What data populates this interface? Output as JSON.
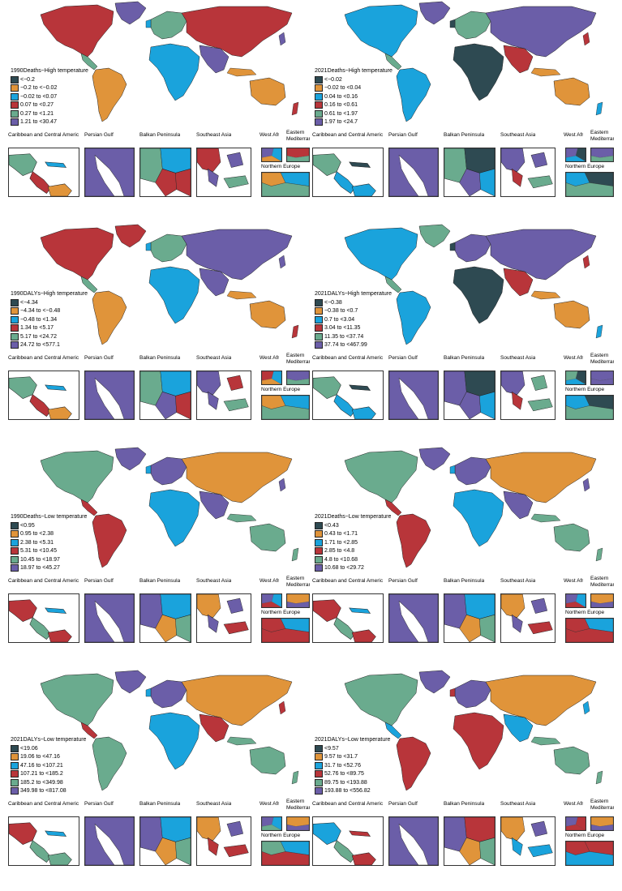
{
  "colors": {
    "c1": "#2e4a52",
    "c2": "#e0943a",
    "c3": "#1aa3dc",
    "c4": "#b8353a",
    "c5": "#6aab8e",
    "c6": "#6b5ea8"
  },
  "inset_labels": {
    "caribbean": "Caribbean and Central Americ",
    "persian": "Persian Gulf",
    "balkan": "Balkan Peninsula",
    "seasia": "Southeast Asia",
    "westafr": "West Afri",
    "eastmed": "Eastern Mediterran",
    "northeu": "Northern Europe"
  },
  "panels": [
    {
      "title": "1990Deaths~High temperature",
      "scheme": [
        "c4",
        "c6",
        "c5",
        "c2",
        "c5",
        "c3",
        "c4",
        "c6",
        "c2"
      ],
      "legend": [
        "<−0.2",
        "−0.2 to <−0.02",
        "−0.02 to <0.07",
        "0.07 to <0.27",
        "0.27 to <1.21",
        "1.21 to <30.47"
      ]
    },
    {
      "title": "2021Deaths~High temperature",
      "scheme": [
        "c3",
        "c6",
        "c5",
        "c3",
        "c5",
        "c1",
        "c6",
        "c4",
        "c2"
      ],
      "legend": [
        "<−0.02",
        "−0.02 to <0.04",
        "0.04 to <0.16",
        "0.16 to <0.61",
        "0.61 to <1.97",
        "1.97 to <24.7"
      ]
    },
    {
      "title": "1990DALYs~High temperature",
      "scheme": [
        "c4",
        "c4",
        "c5",
        "c2",
        "c5",
        "c3",
        "c6",
        "c6",
        "c2"
      ],
      "legend": [
        "<−4.34",
        "−4.34 to <−0.48",
        "−0.48 to <1.34",
        "1.34 to <5.17",
        "5.17 to <24.72",
        "24.72 to <577.1"
      ]
    },
    {
      "title": "2021DALYs~High temperature",
      "scheme": [
        "c3",
        "c5",
        "c5",
        "c3",
        "c6",
        "c1",
        "c6",
        "c4",
        "c2"
      ],
      "legend": [
        "<−0.38",
        "−0.38 to <0.7",
        "0.7 to <3.04",
        "3.04 to <11.35",
        "11.35 to <37.74",
        "37.74 to <467.99"
      ]
    },
    {
      "title": "1990Deaths~Low temperature",
      "scheme": [
        "c5",
        "c6",
        "c4",
        "c4",
        "c6",
        "c3",
        "c2",
        "c6",
        "c5"
      ],
      "legend": [
        "<0.95",
        "0.95 to <2.38",
        "2.38 to <5.31",
        "5.31 to <10.45",
        "10.45 to <18.97",
        "18.97 to <45.27"
      ]
    },
    {
      "title": "2021Deaths~Low temperature",
      "scheme": [
        "c5",
        "c6",
        "c4",
        "c4",
        "c6",
        "c3",
        "c2",
        "c6",
        "c5"
      ],
      "legend": [
        "<0.43",
        "0.43 to <1.71",
        "1.71 to <2.85",
        "2.85 to <4.8",
        "4.8 to <10.68",
        "10.68 to <29.72"
      ]
    },
    {
      "title": "2021DALYs~Low temperature",
      "scheme": [
        "c5",
        "c6",
        "c4",
        "c5",
        "c6",
        "c3",
        "c2",
        "c4",
        "c5"
      ],
      "legend": [
        "<19.06",
        "19.06 to <47.16",
        "47.16 to <107.21",
        "107.21 to <185.2",
        "185.2 to <349.98",
        "349.98 to <817.08"
      ]
    },
    {
      "title": "2021DALYs~Low temperature",
      "scheme": [
        "c5",
        "c6",
        "c3",
        "c4",
        "c6",
        "c4",
        "c2",
        "c3",
        "c5"
      ],
      "legend": [
        "<9.57",
        "9.57 to <31.7",
        "31.7 to <52.76",
        "52.76 to <89.75",
        "89.75 to <193.88",
        "193.88 to <556.82"
      ]
    }
  ]
}
